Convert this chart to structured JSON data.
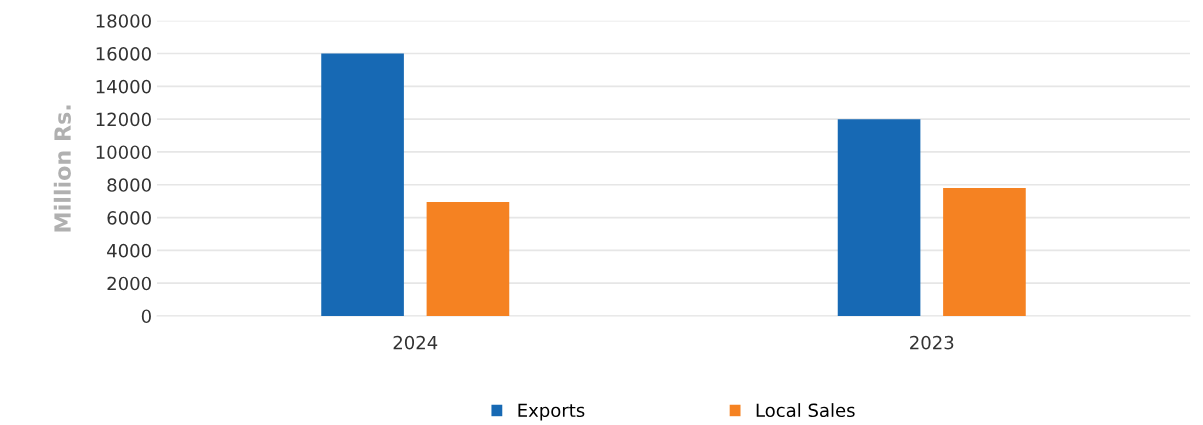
{
  "chart_data": {
    "type": "bar",
    "ylabel": "Million Rs.",
    "categories": [
      "2024",
      "2023"
    ],
    "series": [
      {
        "name": "Exports",
        "color": "#1769b4",
        "values": [
          16000,
          12000
        ]
      },
      {
        "name": "Local Sales",
        "color": "#f58222",
        "values": [
          6950,
          7800
        ]
      }
    ],
    "ylim": [
      0,
      18000
    ],
    "yticks": [
      0,
      2000,
      4000,
      6000,
      8000,
      10000,
      12000,
      14000,
      16000,
      18000
    ],
    "grid": "y",
    "legend": "bottom"
  }
}
